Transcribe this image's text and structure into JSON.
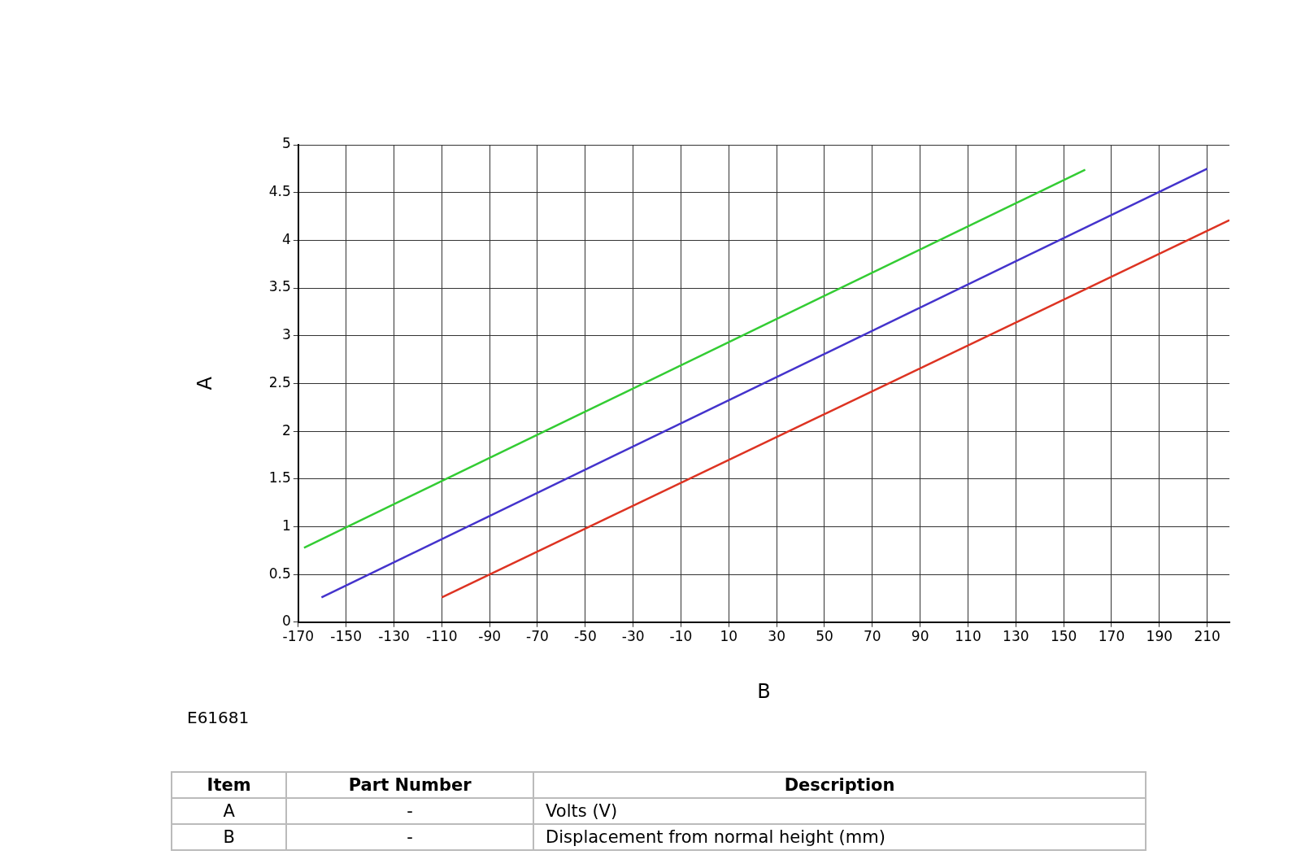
{
  "chart_data": {
    "type": "line",
    "xlabel": "B",
    "ylabel": "A",
    "xlim": [
      -170,
      219.3
    ],
    "xticks": [
      -170,
      -150,
      -130,
      -110,
      -90,
      -70,
      -50,
      -30,
      -10,
      10,
      30,
      50,
      70,
      90,
      110,
      130,
      150,
      170,
      190,
      210
    ],
    "ylim": [
      0,
      5
    ],
    "yticks": [
      0,
      0.5,
      1,
      1.5,
      2,
      2.5,
      3,
      3.5,
      4,
      4.5,
      5
    ],
    "grid": true,
    "legend": false,
    "marker": "none",
    "line_style": "solid",
    "series": [
      {
        "color": "#33cc33",
        "x": [
          -167.6,
          159
        ],
        "values": [
          0.78,
          4.74
        ]
      },
      {
        "color": "#4433cc",
        "x": [
          -160.3,
          210
        ],
        "values": [
          0.26,
          4.75
        ]
      },
      {
        "color": "#dd3322",
        "x": [
          -110,
          219.3
        ],
        "values": [
          0.26,
          4.21
        ]
      }
    ],
    "annotations": [
      "E61681",
      "Item",
      "Part Number",
      "Description",
      "A",
      "-",
      "Volts (V)",
      "B",
      "-",
      "Displacement from normal height (mm)"
    ]
  }
}
